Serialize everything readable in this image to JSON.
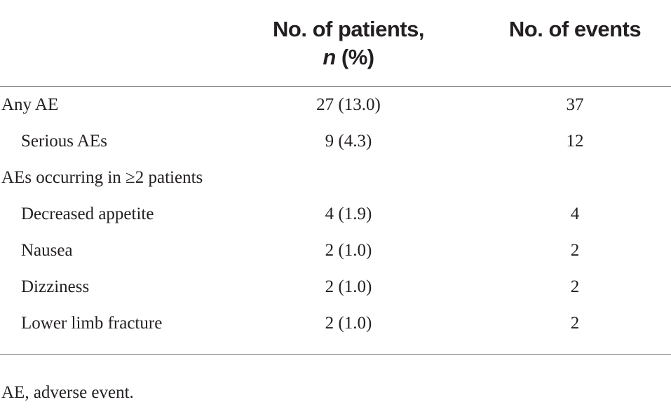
{
  "table": {
    "header": {
      "columns": [
        null,
        {
          "parts": [
            "No. of patients,",
            "n",
            "(%)"
          ]
        },
        {
          "parts": [
            "No. of events"
          ]
        }
      ]
    },
    "rows": [
      {
        "label": "Any AE",
        "patients": "27 (13.0)",
        "events": "37",
        "indent": false
      },
      {
        "label": "Serious AEs",
        "patients": "9 (4.3)",
        "events": "12",
        "indent": true
      },
      {
        "label": "AEs occurring in ≥2 patients",
        "patients": null,
        "events": null,
        "indent": false
      },
      {
        "label": "Decreased appetite",
        "patients": "4 (1.9)",
        "events": "4",
        "indent": true
      },
      {
        "label": "Nausea",
        "patients": "2 (1.0)",
        "events": "2",
        "indent": true
      },
      {
        "label": "Dizziness",
        "patients": "2 (1.0)",
        "events": "2",
        "indent": true
      },
      {
        "label": "Lower limb fracture",
        "patients": "2 (1.0)",
        "events": "2",
        "indent": true
      }
    ],
    "footnote": "AE, adverse event."
  }
}
